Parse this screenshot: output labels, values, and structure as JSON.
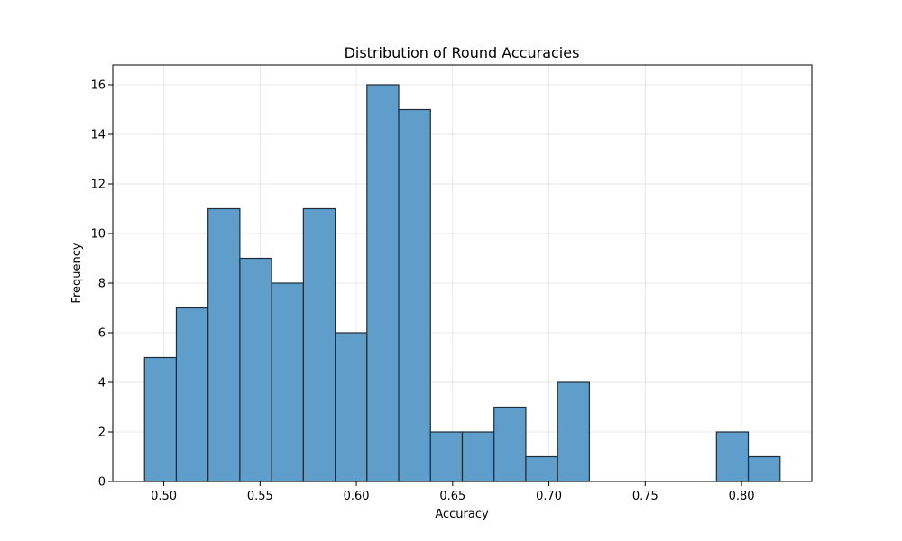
{
  "chart_data": {
    "type": "bar",
    "title": "Distribution of Round Accuracies",
    "xlabel": "Accuracy",
    "ylabel": "Frequency",
    "bins": [
      {
        "x0": 0.49,
        "x1": 0.5065,
        "count": 5
      },
      {
        "x0": 0.5065,
        "x1": 0.523,
        "count": 7
      },
      {
        "x0": 0.523,
        "x1": 0.5395,
        "count": 11
      },
      {
        "x0": 0.5395,
        "x1": 0.556,
        "count": 9
      },
      {
        "x0": 0.556,
        "x1": 0.5725,
        "count": 8
      },
      {
        "x0": 0.5725,
        "x1": 0.589,
        "count": 11
      },
      {
        "x0": 0.589,
        "x1": 0.6055,
        "count": 6
      },
      {
        "x0": 0.6055,
        "x1": 0.622,
        "count": 16
      },
      {
        "x0": 0.622,
        "x1": 0.6385,
        "count": 15
      },
      {
        "x0": 0.6385,
        "x1": 0.655,
        "count": 2
      },
      {
        "x0": 0.655,
        "x1": 0.6715,
        "count": 2
      },
      {
        "x0": 0.6715,
        "x1": 0.688,
        "count": 3
      },
      {
        "x0": 0.688,
        "x1": 0.7045,
        "count": 1
      },
      {
        "x0": 0.7045,
        "x1": 0.721,
        "count": 4
      },
      {
        "x0": 0.721,
        "x1": 0.7375,
        "count": 0
      },
      {
        "x0": 0.7375,
        "x1": 0.754,
        "count": 0
      },
      {
        "x0": 0.754,
        "x1": 0.7705,
        "count": 0
      },
      {
        "x0": 0.7705,
        "x1": 0.787,
        "count": 0
      },
      {
        "x0": 0.787,
        "x1": 0.8035,
        "count": 2
      },
      {
        "x0": 0.8035,
        "x1": 0.82,
        "count": 1
      }
    ],
    "xlim": [
      0.4735,
      0.8365
    ],
    "ylim": [
      0,
      16.8
    ],
    "xticks": [
      0.5,
      0.55,
      0.6,
      0.65,
      0.7,
      0.75,
      0.8
    ],
    "xtick_labels": [
      "0.50",
      "0.55",
      "0.60",
      "0.65",
      "0.70",
      "0.75",
      "0.80"
    ],
    "yticks": [
      0,
      2,
      4,
      6,
      8,
      10,
      12,
      14,
      16
    ],
    "ytick_labels": [
      "0",
      "2",
      "4",
      "6",
      "8",
      "10",
      "12",
      "14",
      "16"
    ],
    "grid": true,
    "bar_color": "#5f9ecb",
    "edge_color": "#1f2b38"
  }
}
